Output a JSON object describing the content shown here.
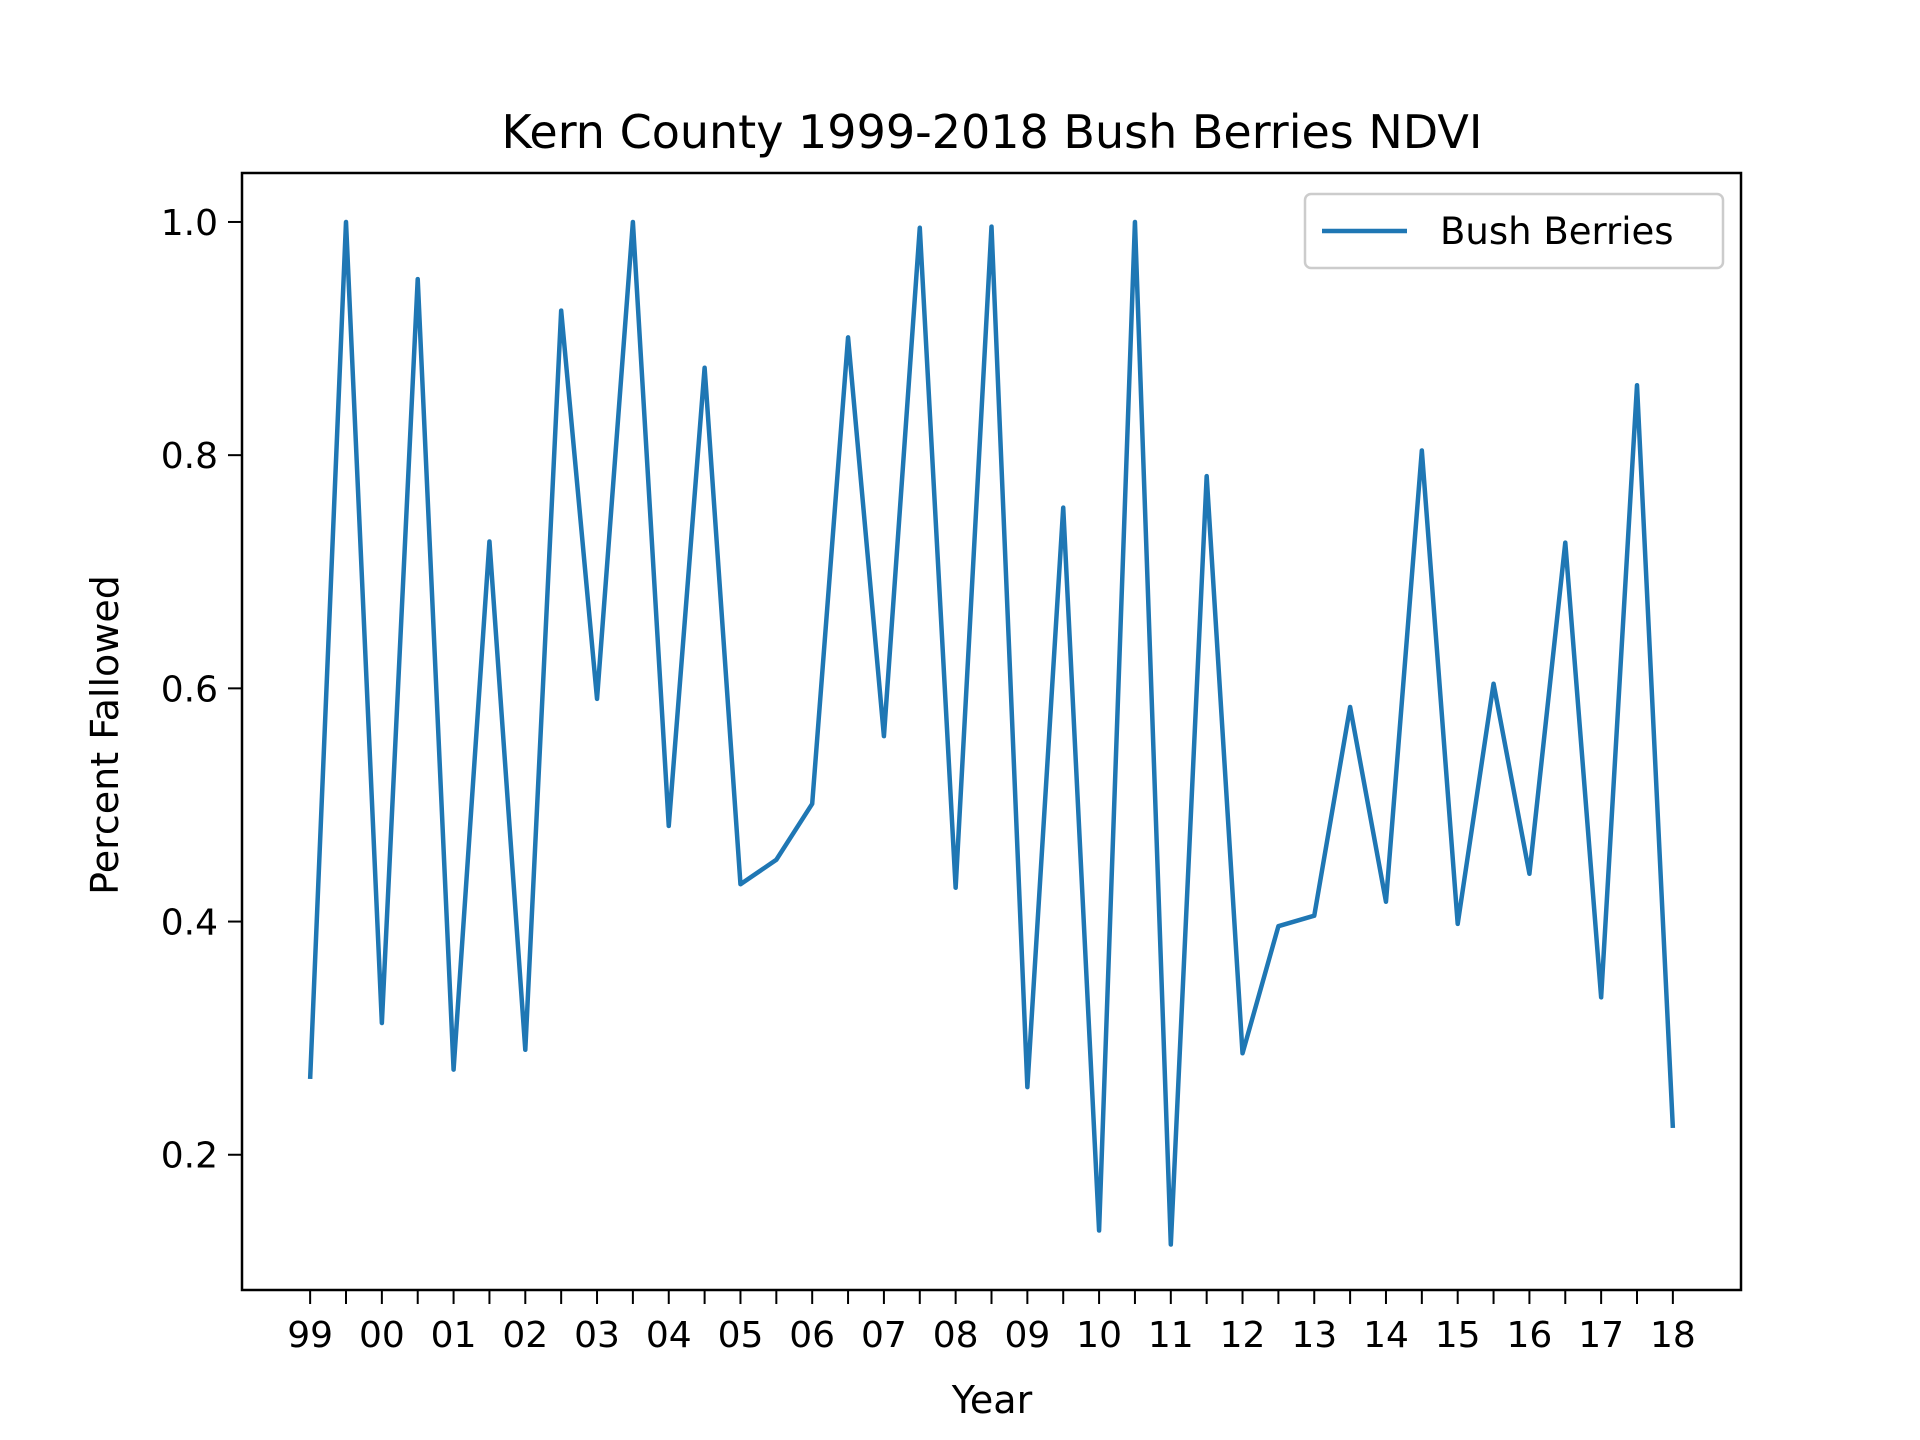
{
  "chart_data": {
    "type": "line",
    "title": "Kern County 1999-2018 Bush Berries NDVI",
    "xlabel": "Year",
    "ylabel": "Percent Fallowed",
    "x_tick_labels": [
      "99",
      "00",
      "01",
      "02",
      "03",
      "04",
      "05",
      "06",
      "07",
      "08",
      "09",
      "10",
      "11",
      "12",
      "13",
      "14",
      "15",
      "16",
      "17",
      "18"
    ],
    "y_ticks": [
      0.2,
      0.4,
      0.6,
      0.8,
      1.0
    ],
    "y_tick_labels": [
      "0.2",
      "0.4",
      "0.6",
      "0.8",
      "1.0"
    ],
    "xlim": [
      1998.05,
      2018.95
    ],
    "ylim": [
      0.084,
      1.042
    ],
    "grid": false,
    "legend": {
      "location": "top-right",
      "entries": [
        "Bush Berries"
      ]
    },
    "colors": {
      "series": "#1f77b4",
      "axes": "#000000",
      "legend_border": "#cccccc"
    },
    "series": [
      {
        "name": "Bush Berries",
        "x": [
          1999,
          1999.5,
          2000,
          2000.5,
          2001,
          2001.5,
          2002,
          2002.5,
          2003,
          2003.5,
          2004,
          2004.5,
          2005,
          2005.5,
          2006,
          2006.5,
          2007,
          2007.5,
          2008,
          2008.5,
          2009,
          2009.5,
          2010,
          2010.5,
          2011,
          2011.5,
          2012,
          2012.5,
          2013,
          2013.5,
          2014,
          2014.5,
          2015,
          2015.5,
          2016,
          2016.5,
          2017,
          2017.5,
          2018
        ],
        "y": [
          0.265,
          1.0,
          0.313,
          0.951,
          0.273,
          0.726,
          0.29,
          0.924,
          0.591,
          1.0,
          0.482,
          0.875,
          0.432,
          0.453,
          0.501,
          0.901,
          0.559,
          0.995,
          0.429,
          0.996,
          0.258,
          0.755,
          0.135,
          1.0,
          0.123,
          0.782,
          0.287,
          0.396,
          0.405,
          0.584,
          0.417,
          0.804,
          0.398,
          0.604,
          0.441,
          0.725,
          0.335,
          0.86,
          0.223
        ]
      }
    ]
  }
}
